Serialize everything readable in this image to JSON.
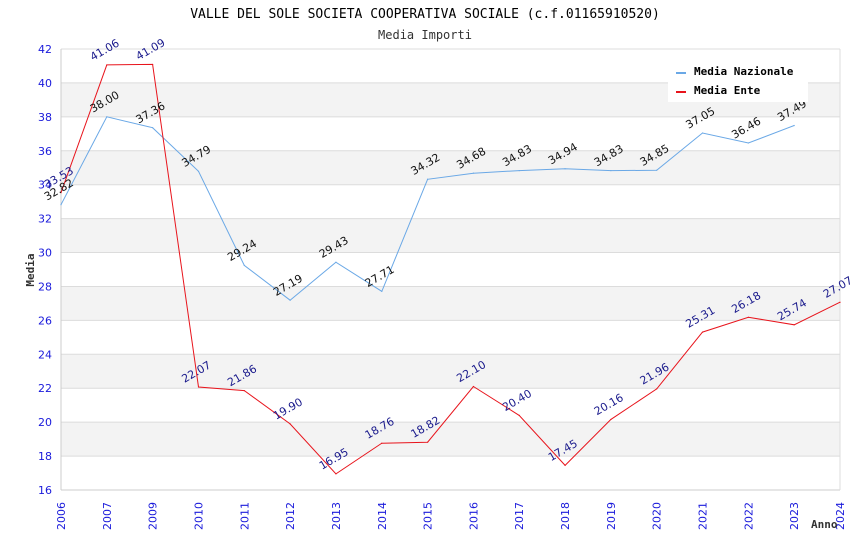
{
  "chart_data": {
    "type": "line",
    "title": "VALLE DEL SOLE SOCIETA COOPERATIVA SOCIALE (c.f.01165910520)",
    "subtitle": "Media Importi",
    "xlabel": "Anno",
    "ylabel": "Media",
    "ylim": [
      16,
      42
    ],
    "yticks": [
      "16",
      "18",
      "20",
      "22",
      "24",
      "26",
      "28",
      "30",
      "32",
      "34",
      "36",
      "38",
      "40",
      "42"
    ],
    "categories": [
      "2006",
      "2007",
      "2009",
      "2010",
      "2011",
      "2012",
      "2013",
      "2014",
      "2015",
      "2016",
      "2017",
      "2018",
      "2019",
      "2020",
      "2021",
      "2022",
      "2023",
      "2024"
    ],
    "grid": true,
    "legend_position": "top-right",
    "series": [
      {
        "name": "Media Nazionale",
        "color": "#6aa8e6",
        "values": [
          32.82,
          38.0,
          37.36,
          34.79,
          29.24,
          27.19,
          29.43,
          27.71,
          34.32,
          34.68,
          34.83,
          34.94,
          34.83,
          34.85,
          37.05,
          36.46,
          37.49,
          null
        ],
        "labels": [
          "32.82",
          "38.00",
          "37.36",
          "34.79",
          "29.24",
          "27.19",
          "29.43",
          "27.71",
          "34.32",
          "34.68",
          "34.83",
          "34.94",
          "34.83",
          "34.85",
          "37.05",
          "36.46",
          "37.49",
          null
        ]
      },
      {
        "name": "Media Ente",
        "color": "#e8141c",
        "values": [
          33.53,
          41.06,
          41.09,
          22.07,
          21.86,
          19.9,
          16.95,
          18.76,
          18.82,
          22.1,
          20.4,
          17.45,
          20.16,
          21.96,
          25.31,
          26.18,
          25.74,
          27.07
        ],
        "labels": [
          "33.53",
          "41.06",
          "41.09",
          "22.07",
          "21.86",
          "19.90",
          "16.95",
          "18.76",
          "18.82",
          "22.10",
          "20.40",
          "17.45",
          "20.16",
          "21.96",
          "25.31",
          "26.18",
          "25.74",
          "27.07"
        ]
      }
    ]
  }
}
